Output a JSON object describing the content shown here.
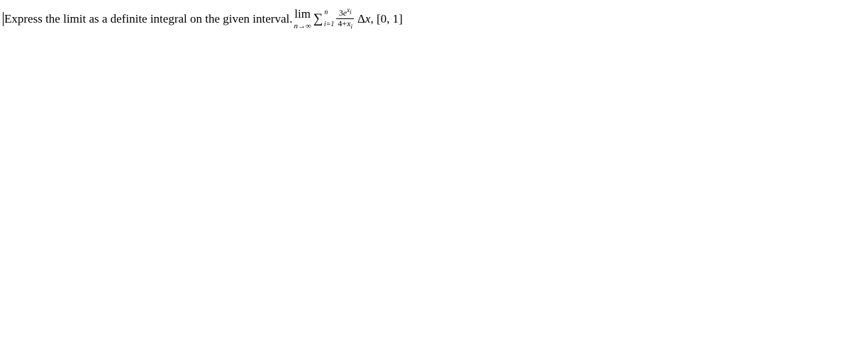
{
  "problem": {
    "prompt_text": "Express the limit as a definite integral on the given interval. ",
    "limit_label": "lim",
    "limit_sub_var": "n",
    "limit_sub_arrow": "→",
    "limit_sub_target": "∞",
    "sigma": "∑",
    "sum_upper": "n",
    "sum_lower_var": "i",
    "sum_lower_eq": "=1",
    "frac_num_coeff": "3",
    "frac_num_e": "e",
    "frac_num_exp_var": "x",
    "frac_num_exp_sub": "i",
    "frac_den_const": "4+",
    "frac_den_var": "x",
    "frac_den_sub": "i",
    "delta": "Δ",
    "delta_var": "x",
    "interval_sep": ", ",
    "interval": "[0, 1]"
  },
  "style": {
    "background": "#ffffff",
    "text_color": "#000000",
    "base_fontsize": 17,
    "script_fontsize": 11,
    "frac_fontsize": 12
  }
}
